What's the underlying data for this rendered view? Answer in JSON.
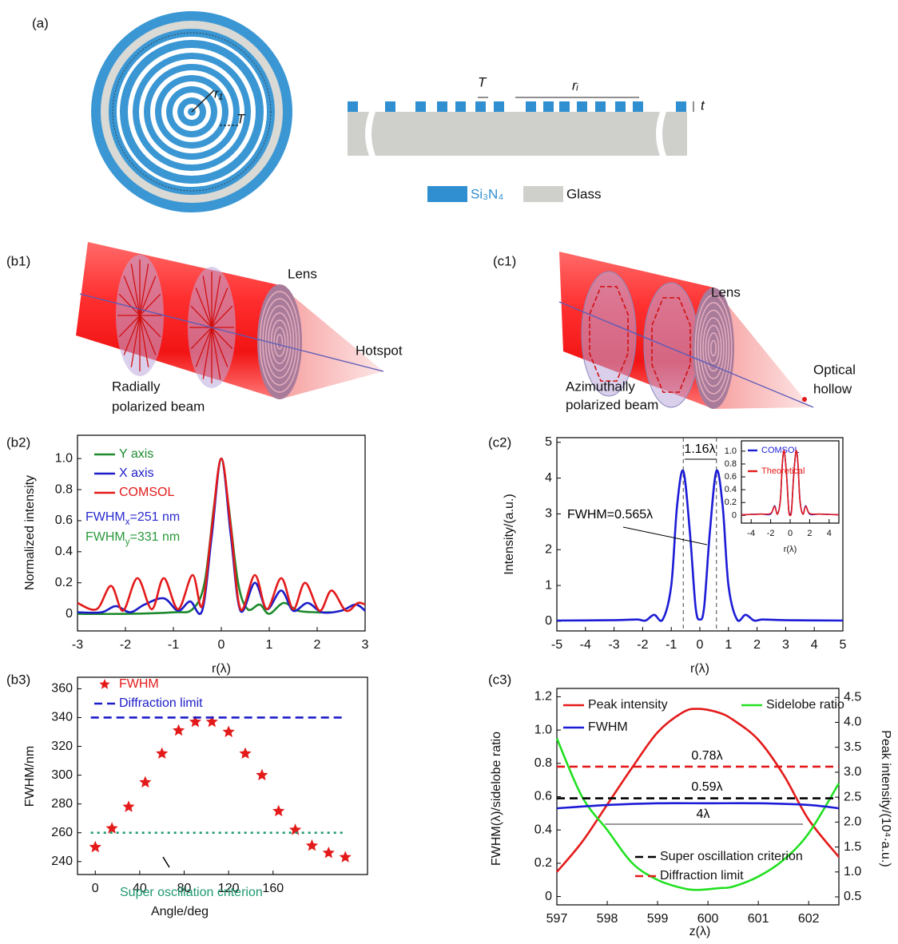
{
  "figure": {
    "panels": [
      "(a)",
      "(b1)",
      "(c1)",
      "(b2)",
      "(c2)",
      "(b3)",
      "(c3)"
    ],
    "a": {
      "labels": [
        "r₁",
        "T",
        "T",
        "rᵢ",
        "t"
      ],
      "legend": [
        "Si₃N₄",
        "Glass"
      ]
    },
    "b1": {
      "lens": "Lens",
      "spot": "Hotspot",
      "beam": [
        "Radially",
        "polarized beam"
      ]
    },
    "c1": {
      "lens": "Lens",
      "spot": [
        "Optical",
        "hollow"
      ],
      "beam": [
        "Azimuthally",
        "polarized beam"
      ]
    }
  },
  "chart_data": [
    {
      "type": "line",
      "xlabel": "r(λ)",
      "ylabel": "Normalized intensity",
      "xlim": [
        -3,
        3
      ],
      "xticks": [
        -3,
        -2,
        -1,
        0,
        1,
        2,
        3
      ],
      "ylim": [
        -0.11,
        1.15
      ],
      "yticks": [
        0,
        0.2,
        0.4,
        0.6,
        0.8,
        {
          "value": 1,
          "label": "1.0"
        }
      ],
      "series": [
        {
          "name": "Y axis",
          "color": "#1e8a2e",
          "x": [
            -3,
            -2,
            -1,
            -0.6,
            -0.35,
            -0.15,
            0,
            0.15,
            0.35,
            0.55,
            0.8,
            1.0,
            1.3,
            1.6,
            2.0,
            2.3
          ],
          "values": [
            0,
            0,
            0.01,
            0.03,
            0.2,
            0.7,
            1.0,
            0.7,
            0.2,
            0.03,
            0.06,
            0.0,
            0.07,
            0.02,
            0.01,
            0.01
          ]
        },
        {
          "name": "X axis",
          "color": "#1c1cc8",
          "x": [
            -3,
            -2.5,
            -2.2,
            -1.9,
            -1.6,
            -1.2,
            -0.9,
            -0.65,
            -0.4,
            -0.2,
            0,
            0.2,
            0.4,
            0.7,
            0.95,
            1.25,
            1.5,
            1.8,
            2.1,
            2.5,
            2.8,
            3
          ],
          "values": [
            0.01,
            0.01,
            0.05,
            0.01,
            0.06,
            0.1,
            0.02,
            0.08,
            0.02,
            0.5,
            1.0,
            0.5,
            0.02,
            0.2,
            0.03,
            0.15,
            0.02,
            0.07,
            0.01,
            0.02,
            0.06,
            0.02
          ]
        },
        {
          "name": "COMSOL",
          "color": "#e41a1a",
          "x": [
            -3,
            -2.6,
            -2.3,
            -2.05,
            -1.75,
            -1.45,
            -1.2,
            -0.9,
            -0.6,
            -0.4,
            -0.2,
            0,
            0.2,
            0.4,
            0.7,
            0.95,
            1.25,
            1.5,
            1.75,
            2.05,
            2.3,
            2.6,
            2.85,
            3
          ],
          "values": [
            0.07,
            0.03,
            0.18,
            0.02,
            0.23,
            0.03,
            0.23,
            0.03,
            0.25,
            0.05,
            0.55,
            1.0,
            0.55,
            0.03,
            0.25,
            0.03,
            0.23,
            0.03,
            0.2,
            0.02,
            0.15,
            0.02,
            0.07,
            0.06
          ]
        }
      ],
      "annotations": [
        {
          "text": [
            "FWHM",
            {
              "sub": "x"
            },
            "=251 nm"
          ],
          "color": "#2a2ad0"
        },
        {
          "text": [
            "FWHM",
            {
              "sub": "y"
            },
            "=331 nm"
          ],
          "color": "#2a9a3a"
        }
      ]
    },
    {
      "type": "line",
      "xlabel": "r(λ)",
      "ylabel": "Intensity/(a.u.)",
      "xlim": [
        -5,
        5
      ],
      "xticks": [
        -5,
        -4,
        -3,
        -2,
        -1,
        0,
        1,
        2,
        3,
        4,
        5
      ],
      "ylim": [
        -0.27,
        5.13
      ],
      "yticks": [
        0,
        1,
        2,
        3,
        4,
        5
      ],
      "vlines": [
        -0.58,
        0.58
      ],
      "series": [
        {
          "color": "#1c1cd6",
          "x": [
            -5,
            -3,
            -2.2,
            -1.9,
            -1.6,
            -1.3,
            -1.0,
            -0.8,
            -0.58,
            -0.35,
            -0.15,
            0,
            0.15,
            0.35,
            0.58,
            0.8,
            1.0,
            1.3,
            1.6,
            1.9,
            2.2,
            3,
            5
          ],
          "values": [
            0.02,
            0.03,
            0.05,
            0.02,
            0.18,
            0.05,
            1.0,
            3.2,
            4.2,
            2.5,
            0.4,
            0.05,
            0.4,
            2.5,
            4.2,
            3.2,
            1.0,
            0.05,
            0.18,
            0.02,
            0.05,
            0.03,
            0.02
          ]
        }
      ],
      "annotations": [
        {
          "text": "1.16λ",
          "color": "#000000"
        },
        {
          "text": "FWHM=0.565λ",
          "color": "#000000"
        }
      ]
    },
    {
      "type": "line",
      "xlabel": "r(λ)",
      "xlim": [
        -5,
        5
      ],
      "xticks": [
        -4,
        -2,
        0,
        2,
        4
      ],
      "ylim": [
        -0.12,
        1.16
      ],
      "yticks": [
        0,
        0.2,
        0.4,
        0.6,
        0.8,
        {
          "value": 1,
          "label": "1.0"
        }
      ],
      "x": [
        -5,
        -3,
        -2,
        -1.6,
        -1.3,
        -1.0,
        -0.8,
        -0.6,
        -0.35,
        -0.15,
        0,
        0.15,
        0.35,
        0.6,
        0.8,
        1.0,
        1.3,
        1.6,
        2,
        3,
        5
      ],
      "series": [
        {
          "name": "COMSOL",
          "color": "#1c1cd6",
          "values": [
            0.01,
            0.02,
            0.02,
            0.15,
            0.02,
            0.25,
            0.8,
            1.0,
            0.6,
            0.1,
            0.02,
            0.1,
            0.6,
            1.0,
            0.8,
            0.25,
            0.02,
            0.15,
            0.02,
            0.02,
            0.01
          ]
        },
        {
          "name": "Theoretical",
          "color": "#e41a1a",
          "values": [
            0.01,
            0.02,
            0.03,
            0.14,
            0.02,
            0.24,
            0.82,
            1.0,
            0.58,
            0.08,
            0.0,
            0.08,
            0.58,
            1.0,
            0.82,
            0.24,
            0.02,
            0.14,
            0.03,
            0.02,
            0.01
          ]
        }
      ]
    },
    {
      "type": "scatter",
      "xlabel": "Angle/deg",
      "ylabel": "FWHM/nm",
      "xlim": [
        -16,
        245
      ],
      "xticks": [
        0,
        40,
        80,
        120,
        160
      ],
      "ylim": [
        231,
        368
      ],
      "yticks": [
        240,
        260,
        280,
        300,
        320,
        340,
        360
      ],
      "series": [
        {
          "name": "FWHM",
          "color": "#e41a1a",
          "marker": "star",
          "x": [
            0,
            15,
            30,
            45,
            60,
            75,
            90,
            105,
            120,
            135,
            150,
            165,
            180,
            195,
            210,
            225
          ],
          "values": [
            250,
            263,
            278,
            295,
            315,
            331,
            337,
            337,
            330,
            315,
            300,
            275,
            262,
            251,
            246,
            243
          ]
        },
        {
          "name": "Diffraction limit",
          "color": "#1c1cc8",
          "style": "dashed",
          "x": [
            -4,
            226
          ],
          "values": [
            340,
            340
          ]
        },
        {
          "name": "Super oscillation criterion",
          "color": "#1e9a6e",
          "style": "dotted",
          "x": [
            -4,
            226
          ],
          "values": [
            260,
            260
          ]
        }
      ]
    },
    {
      "type": "line",
      "xlabel": "z(λ)",
      "ylabel": "FWHM(λ)/sidelobe ratio",
      "y2label": "Peak intensity/(10⁴·a.u.)",
      "xlim": [
        597,
        602.6
      ],
      "xticks": [
        597,
        598,
        599,
        600,
        601,
        602
      ],
      "ylim": [
        -0.05,
        1.25
      ],
      "yticks": [
        0,
        0.2,
        0.4,
        0.6,
        0.8,
        {
          "value": 1,
          "label": "1.0"
        },
        1.2
      ],
      "y2lim": [
        0.34,
        4.68
      ],
      "y2ticks": [
        0.5,
        {
          "value": 1,
          "label": "1.0"
        },
        1.5,
        {
          "value": 2,
          "label": "2.0"
        },
        2.5,
        {
          "value": 3,
          "label": "3.0"
        },
        3.5,
        {
          "value": 4,
          "label": "4.0"
        },
        4.5
      ],
      "series": [
        {
          "name": "Peak intensity",
          "color": "#e41a1a",
          "axis": "y2",
          "x": [
            597,
            597.5,
            598,
            598.5,
            599,
            599.5,
            599.8,
            600.2,
            600.5,
            601,
            601.5,
            602,
            602.6
          ],
          "values": [
            1.0,
            1.6,
            2.35,
            3.1,
            3.8,
            4.2,
            4.27,
            4.2,
            4.05,
            3.65,
            2.95,
            2.05,
            1.3
          ]
        },
        {
          "name": "Sidelobe ratio",
          "color": "#22e022",
          "x": [
            597,
            597.5,
            598,
            598.5,
            599,
            599.5,
            599.8,
            600.2,
            600.5,
            601,
            601.5,
            602,
            602.6
          ],
          "values": [
            0.95,
            0.6,
            0.4,
            0.2,
            0.1,
            0.05,
            0.04,
            0.05,
            0.06,
            0.12,
            0.22,
            0.38,
            0.68
          ]
        },
        {
          "name": "FWHM",
          "color": "#1c1cd6",
          "x": [
            597,
            598,
            599,
            600,
            601,
            602,
            602.6
          ],
          "values": [
            0.53,
            0.55,
            0.56,
            0.56,
            0.56,
            0.55,
            0.53
          ]
        },
        {
          "name": "Super oscillation criterion",
          "color": "#000000",
          "style": "dashed",
          "x": [
            597,
            602.6
          ],
          "values": [
            0.59,
            0.59
          ]
        },
        {
          "name": "Diffraction limit",
          "color": "#e41a1a",
          "style": "dashed",
          "x": [
            597,
            602.6
          ],
          "values": [
            0.78,
            0.78
          ]
        }
      ],
      "annotations": [
        {
          "text": "0.78λ",
          "color": "#000000"
        },
        {
          "text": "0.59λ",
          "color": "#000000"
        },
        {
          "text": "4λ",
          "color": "#000000"
        }
      ]
    }
  ]
}
